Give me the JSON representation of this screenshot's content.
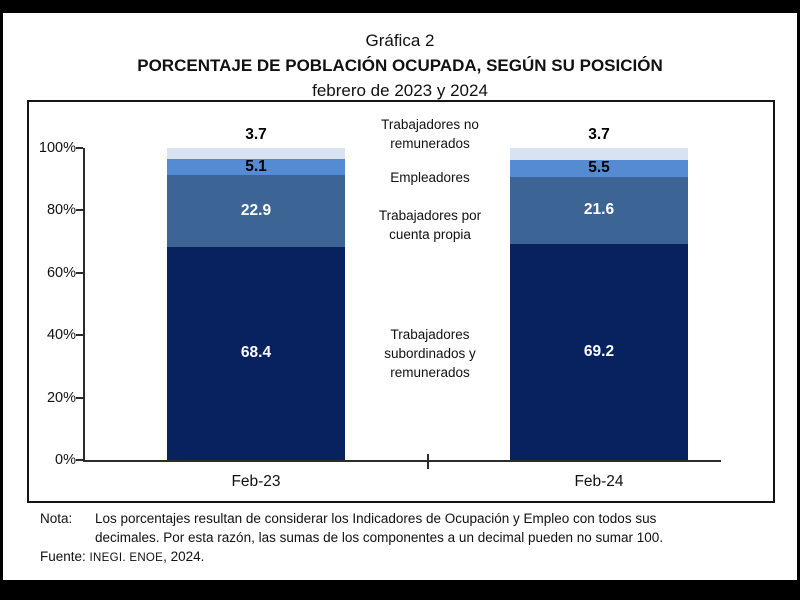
{
  "title": {
    "line1": "Gráfica 2",
    "line2": "PORCENTAJE DE POBLACIÓN OCUPADA, SEGÚN SU POSICIÓN",
    "line3": "febrero de 2023 y 2024"
  },
  "chart_data": {
    "type": "bar",
    "stacked": true,
    "title": "Porcentaje de población ocupada, según su posición — febrero de 2023 y 2024",
    "categories": [
      "Feb-23",
      "Feb-24"
    ],
    "series": [
      {
        "name": "Trabajadores subordinados y remunerados",
        "values": [
          68.4,
          69.2
        ],
        "color": "#07225f",
        "label_color": "#ffffff",
        "label_position": "inside"
      },
      {
        "name": "Trabajadores por cuenta propia",
        "values": [
          22.9,
          21.6
        ],
        "color": "#3c6596",
        "label_color": "#ffffff",
        "label_position": "inside"
      },
      {
        "name": "Empleadores",
        "values": [
          5.1,
          5.5
        ],
        "color": "#548bd3",
        "label_color": "#000000",
        "label_position": "inside"
      },
      {
        "name": "Trabajadores no remunerados",
        "values": [
          3.7,
          3.7
        ],
        "color": "#d9e2f1",
        "label_color": "#000000",
        "label_position": "above"
      }
    ],
    "y_axis": {
      "min": 0,
      "max": 100,
      "tick_values": [
        100,
        80,
        60,
        40,
        20,
        0
      ],
      "tick_labels": [
        "100%",
        "80%",
        "60%",
        "40%",
        "20%",
        "0%"
      ]
    },
    "grid": false,
    "legend_position": "between-bars"
  },
  "center_labels": [
    "Trabajadores no\nremunerados",
    "Empleadores",
    "Trabajadores por\ncuenta propia",
    "Trabajadores\nsubordinados  y\nremunerados"
  ],
  "note": {
    "label": "Nota:",
    "text": "Los porcentajes resultan de considerar los Indicadores de Ocupación y Empleo con todos sus\ndecimales. Por esta razón, las sumas de los componentes a un decimal pueden no sumar 100.",
    "source_label": "Fuente:",
    "source_caps": "INEGI. ENOE",
    "source_rest": ", 2024."
  }
}
